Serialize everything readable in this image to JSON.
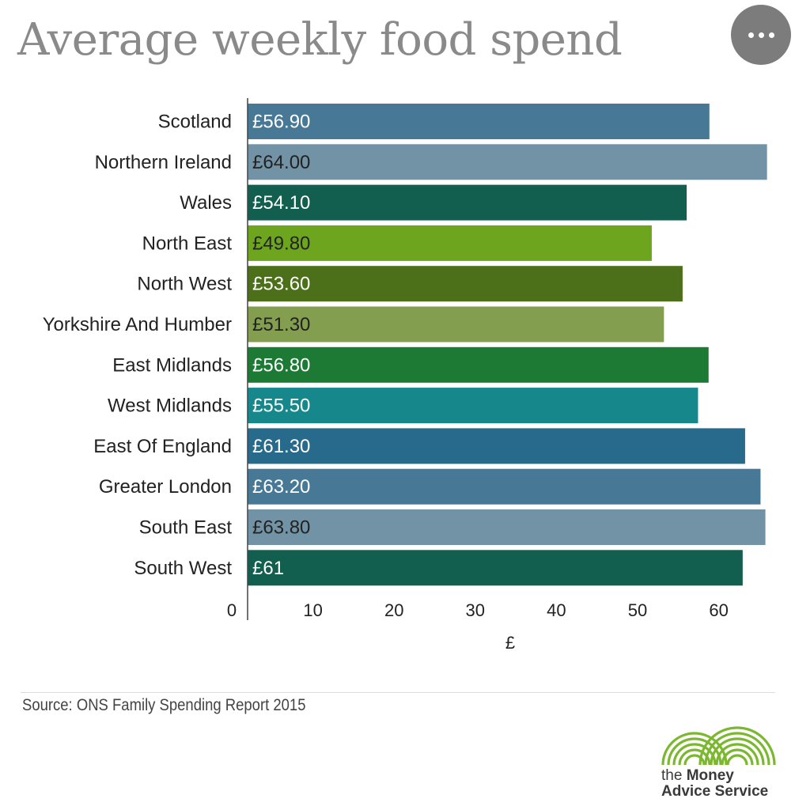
{
  "title": "Average weekly food spend",
  "menu": {
    "icon": "more-horizontal-icon"
  },
  "source": "Source: ONS Family Spending Report 2015",
  "logo": {
    "line1_prefix": "the ",
    "line1_bold": "Money",
    "line2": "Advice Service",
    "color": "#7cb82f"
  },
  "chart_data": {
    "type": "bar",
    "orientation": "horizontal",
    "categories": [
      "Scotland",
      "Northern Ireland",
      "Wales",
      "North East",
      "North West",
      "Yorkshire And Humber",
      "East Midlands",
      "West Midlands",
      "East Of England",
      "Greater London",
      "South East",
      "South West"
    ],
    "values": [
      56.9,
      64.0,
      54.1,
      49.8,
      53.6,
      51.3,
      56.8,
      55.5,
      61.3,
      63.2,
      63.8,
      61
    ],
    "data_labels": [
      "£56.90",
      "£64.00",
      "£54.10",
      "£49.80",
      "£53.60",
      "£51.30",
      "£56.80",
      "£55.50",
      "£61.30",
      "£63.20",
      "£63.80",
      "£61"
    ],
    "colors": [
      "#477895",
      "#7293a5",
      "#125e4f",
      "#6ea51f",
      "#4b7019",
      "#839e4f",
      "#1c7a35",
      "#16888c",
      "#286a8c",
      "#477895",
      "#7293a5",
      "#125e4f"
    ],
    "label_colors": [
      "#ffffff",
      "#222222",
      "#ffffff",
      "#222222",
      "#ffffff",
      "#222222",
      "#ffffff",
      "#ffffff",
      "#ffffff",
      "#ffffff",
      "#222222",
      "#ffffff"
    ],
    "xlabel": "£",
    "ylabel": "",
    "xticks": [
      0,
      10,
      20,
      30,
      40,
      50,
      60
    ],
    "xlim": [
      0,
      66
    ],
    "grid": false,
    "legend": "none"
  }
}
